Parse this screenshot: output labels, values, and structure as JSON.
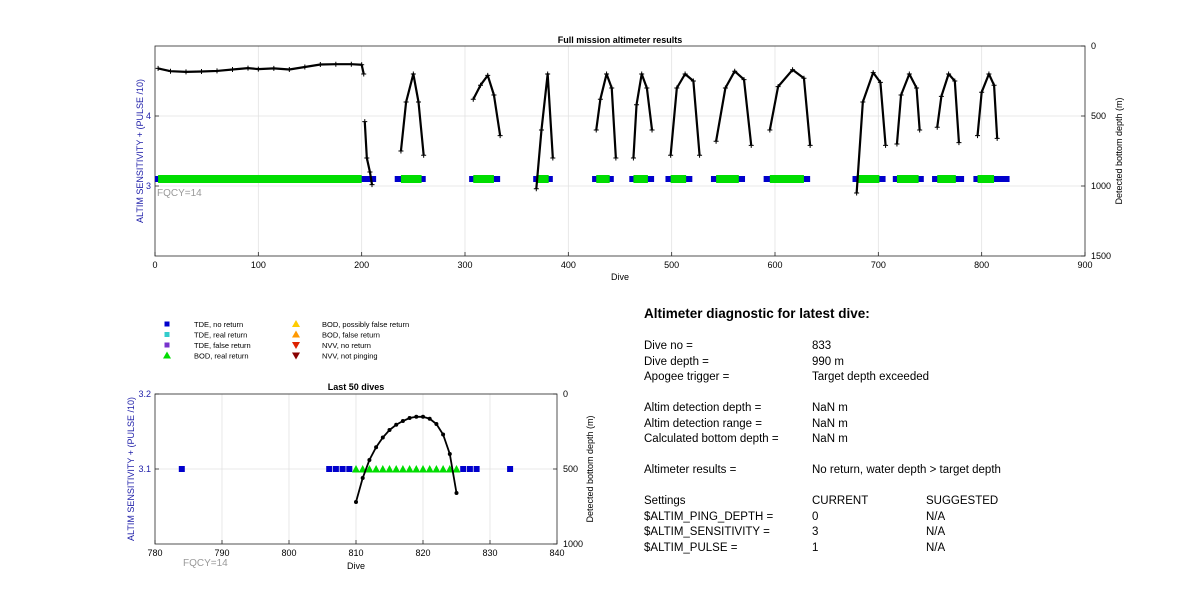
{
  "top_chart": {
    "title": "Full mission altimeter results",
    "ylabel_left": "ALTIM SENSITIVITY + (PULSE /10)",
    "ylabel_right": "Detected bottom depth (m)",
    "xlabel": "Dive",
    "fqcy_label": "FQCY=14",
    "left_ticks": [
      "3",
      "4"
    ],
    "right_ticks": [
      "0",
      "500",
      "1000",
      "1500"
    ],
    "x_ticks": [
      "0",
      "100",
      "200",
      "300",
      "400",
      "500",
      "600",
      "700",
      "800",
      "900"
    ]
  },
  "bottom_chart": {
    "title": "Last 50 dives",
    "ylabel_left": "ALTIM SENSITIVITY + (PULSE /10)",
    "ylabel_right": "Detected bottom depth (m)",
    "xlabel": "Dive",
    "fqcy_label": "FQCY=14",
    "left_ticks": [
      "3.1",
      "3.2"
    ],
    "right_ticks": [
      "0",
      "500",
      "1000"
    ],
    "x_ticks": [
      "780",
      "790",
      "800",
      "810",
      "820",
      "830",
      "840"
    ]
  },
  "legend": {
    "items": [
      {
        "label": "TDE, no return",
        "color": "#0000cc",
        "shape": "square"
      },
      {
        "label": "TDE, real return",
        "color": "#33cccc",
        "shape": "square"
      },
      {
        "label": "TDE, false return",
        "color": "#7733cc",
        "shape": "square"
      },
      {
        "label": "BOD, real return",
        "color": "#00dd00",
        "shape": "triangle-up"
      },
      {
        "label": "BOD, possibly false return",
        "color": "#ffcc00",
        "shape": "triangle-up"
      },
      {
        "label": "BOD, false return",
        "color": "#ff9900",
        "shape": "triangle-up"
      },
      {
        "label": "NVV, no return",
        "color": "#dd2200",
        "shape": "triangle-down"
      },
      {
        "label": "NVV, not pinging",
        "color": "#880000",
        "shape": "triangle-down"
      }
    ]
  },
  "diagnostic": {
    "title": "Altimeter diagnostic for latest dive:",
    "dive_no_label": "Dive no =",
    "dive_no": "833",
    "dive_depth_label": "Dive depth =",
    "dive_depth": "990 m",
    "apogee_label": "Apogee trigger =",
    "apogee": "Target depth exceeded",
    "det_depth_label": "Altim detection depth =",
    "det_depth": "NaN m",
    "det_range_label": "Altim detection range =",
    "det_range": "NaN m",
    "calc_depth_label": "Calculated bottom depth =",
    "calc_depth": "NaN m",
    "results_label": "Altimeter results =",
    "results": "No return, water depth > target depth",
    "settings_label": "Settings",
    "current_label": "CURRENT",
    "suggested_label": "SUGGESTED",
    "settings": [
      {
        "name": "$ALTIM_PING_DEPTH =",
        "current": "0",
        "suggested": "N/A"
      },
      {
        "name": "$ALTIM_SENSITIVITY =",
        "current": "3",
        "suggested": "N/A"
      },
      {
        "name": "$ALTIM_PULSE =",
        "current": "1",
        "suggested": "N/A"
      }
    ]
  },
  "colors": {
    "tde_no_return": "#0000cc",
    "bod_real_return": "#00dd00",
    "depth_line": "#000000",
    "left_axis": "#2222aa",
    "fqcy": "#999999",
    "grid": "#e2e2e2"
  },
  "chart_data": [
    {
      "type": "scatter",
      "title": "Full mission altimeter results",
      "xlabel": "Dive",
      "ylabel": "ALTIM SENSITIVITY + (PULSE /10)",
      "y2label": "Detected bottom depth (m)",
      "xlim": [
        0,
        900
      ],
      "ylim": [
        2,
        5
      ],
      "y2lim": [
        1500,
        0
      ],
      "grid": true,
      "series": [
        {
          "name": "TDE, no return",
          "axis": "left",
          "segments": [
            [
              0,
              214
            ],
            [
              232,
              262
            ],
            [
              304,
              334
            ],
            [
              366,
              385
            ],
            [
              423,
              444
            ],
            [
              459,
              483
            ],
            [
              494,
              520
            ],
            [
              538,
              571
            ],
            [
              589,
              634
            ],
            [
              675,
              707
            ],
            [
              714,
              744
            ],
            [
              752,
              783
            ],
            [
              792,
              827
            ]
          ],
          "value": 3.1
        },
        {
          "name": "BOD, real return",
          "axis": "left",
          "segments": [
            [
              3,
              200
            ],
            [
              238,
              258
            ],
            [
              308,
              328
            ],
            [
              369,
              381
            ],
            [
              427,
              440
            ],
            [
              463,
              477
            ],
            [
              499,
              514
            ],
            [
              543,
              565
            ],
            [
              595,
              628
            ],
            [
              679,
              701
            ],
            [
              718,
              739
            ],
            [
              757,
              775
            ],
            [
              796,
              812
            ]
          ],
          "value": 3.1
        },
        {
          "name": "Detected bottom depth",
          "axis": "right",
          "segments": [
            {
              "x": [
                3,
                15,
                30,
                45,
                60,
                75,
                90,
                100,
                115,
                130,
                145,
                160,
                175,
                190,
                200,
                202
              ],
              "y": [
                160,
                180,
                185,
                182,
                178,
                168,
                158,
                165,
                160,
                168,
                150,
                132,
                130,
                130,
                134,
                200
              ]
            },
            {
              "x": [
                203,
                205,
                208,
                210
              ],
              "y": [
                540,
                800,
                900,
                990
              ]
            },
            {
              "x": [
                238,
                243,
                250,
                255,
                260
              ],
              "y": [
                750,
                400,
                200,
                400,
                780
              ]
            },
            {
              "x": [
                308,
                315,
                322,
                328,
                334
              ],
              "y": [
                380,
                280,
                210,
                350,
                640
              ]
            },
            {
              "x": [
                369,
                374,
                380,
                385
              ],
              "y": [
                1020,
                600,
                200,
                800
              ]
            },
            {
              "x": [
                427,
                431,
                437,
                442,
                446
              ],
              "y": [
                600,
                380,
                200,
                300,
                800
              ]
            },
            {
              "x": [
                463,
                466,
                471,
                476,
                481
              ],
              "y": [
                800,
                420,
                200,
                300,
                600
              ]
            },
            {
              "x": [
                499,
                505,
                513,
                521,
                527
              ],
              "y": [
                780,
                300,
                200,
                250,
                780
              ]
            },
            {
              "x": [
                543,
                552,
                561,
                570,
                577
              ],
              "y": [
                680,
                300,
                180,
                240,
                710
              ]
            },
            {
              "x": [
                595,
                603,
                617,
                628,
                634
              ],
              "y": [
                600,
                290,
                170,
                230,
                710
              ]
            },
            {
              "x": [
                679,
                685,
                695,
                702,
                707
              ],
              "y": [
                1050,
                400,
                190,
                260,
                710
              ]
            },
            {
              "x": [
                718,
                722,
                730,
                737,
                740
              ],
              "y": [
                700,
                350,
                200,
                300,
                600
              ]
            },
            {
              "x": [
                757,
                761,
                768,
                774,
                778
              ],
              "y": [
                580,
                360,
                200,
                250,
                690
              ]
            },
            {
              "x": [
                796,
                800,
                807,
                812,
                815
              ],
              "y": [
                640,
                330,
                200,
                280,
                660
              ]
            }
          ]
        }
      ],
      "annotation": "FQCY=14"
    },
    {
      "type": "scatter",
      "title": "Last 50 dives",
      "xlabel": "Dive",
      "ylabel": "ALTIM SENSITIVITY + (PULSE /10)",
      "y2label": "Detected bottom depth (m)",
      "xlim": [
        780,
        840
      ],
      "ylim": [
        3.0,
        3.2
      ],
      "y2lim": [
        1000,
        0
      ],
      "grid": true,
      "series": [
        {
          "name": "TDE, no return",
          "axis": "left",
          "x": [
            784,
            806,
            807,
            808,
            809,
            826,
            827,
            828,
            833
          ],
          "y": [
            3.1,
            3.1,
            3.1,
            3.1,
            3.1,
            3.1,
            3.1,
            3.1,
            3.1
          ]
        },
        {
          "name": "BOD, real return",
          "axis": "left",
          "x": [
            810,
            811,
            812,
            813,
            814,
            815,
            816,
            817,
            818,
            819,
            820,
            821,
            822,
            823,
            824,
            825
          ],
          "y": [
            3.1,
            3.1,
            3.1,
            3.1,
            3.1,
            3.1,
            3.1,
            3.1,
            3.1,
            3.1,
            3.1,
            3.1,
            3.1,
            3.1,
            3.1,
            3.1
          ]
        },
        {
          "name": "Detected bottom depth",
          "axis": "right",
          "x": [
            810,
            811,
            812,
            813,
            814,
            815,
            816,
            817,
            818,
            819,
            820,
            821,
            822,
            823,
            824,
            825
          ],
          "y": [
            720,
            560,
            440,
            355,
            290,
            240,
            205,
            180,
            160,
            152,
            152,
            165,
            200,
            270,
            400,
            660
          ]
        }
      ],
      "annotation": "FQCY=14"
    }
  ]
}
